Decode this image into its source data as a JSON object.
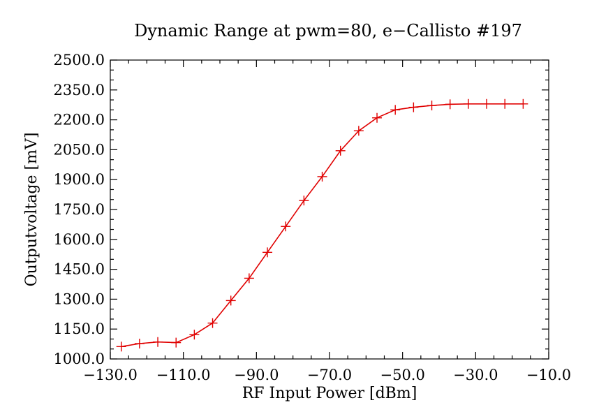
{
  "chart_data": {
    "type": "line",
    "title": "Dynamic Range at pwm=80, e−Callisto #197",
    "xlabel": "RF Input Power [dBm]",
    "ylabel": "Outputvoltage [mV]",
    "xlim": [
      -130,
      -10
    ],
    "ylim": [
      1000,
      2500
    ],
    "x_ticks": [
      -130,
      -110,
      -90,
      -70,
      -50,
      -30,
      -10
    ],
    "x_tick_labels": [
      "−130.0",
      "−110.0",
      "−90.0",
      "−70.0",
      "−50.0",
      "−30.0",
      "−10.0"
    ],
    "y_ticks": [
      1000,
      1150,
      1300,
      1450,
      1600,
      1750,
      1900,
      2050,
      2200,
      2350,
      2500
    ],
    "y_tick_labels": [
      "1000.0",
      "1150.0",
      "1300.0",
      "1450.0",
      "1600.0",
      "1750.0",
      "1900.0",
      "2050.0",
      "2200.0",
      "2350.0",
      "2500.0"
    ],
    "grid": false,
    "color": "#e00000",
    "series": [
      {
        "marker": "plus",
        "x": [
          -127,
          -122,
          -117,
          -112,
          -107,
          -102,
          -97,
          -92,
          -87,
          -82,
          -77,
          -72,
          -67,
          -62,
          -57,
          -52,
          -47,
          -42,
          -37,
          -32,
          -27,
          -22,
          -17
        ],
        "y": [
          1062,
          1077,
          1085,
          1082,
          1122,
          1180,
          1293,
          1405,
          1535,
          1665,
          1795,
          1915,
          2045,
          2145,
          2210,
          2250,
          2263,
          2272,
          2278,
          2280,
          2280,
          2280,
          2280
        ]
      }
    ]
  }
}
